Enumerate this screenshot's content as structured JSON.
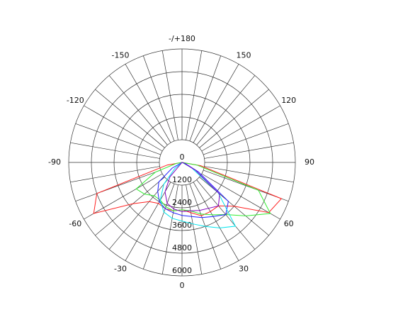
{
  "chart_data": {
    "type": "polar",
    "angles": [
      -90,
      -80,
      -70,
      -60,
      -50,
      -40,
      -30,
      -20,
      -10,
      0,
      10,
      20,
      30,
      40,
      50,
      60,
      70,
      80,
      90
    ],
    "rlim": [
      0,
      6000
    ],
    "rticks": [
      0,
      1200,
      2400,
      3600,
      4800,
      6000
    ],
    "angle_ticks": [
      0,
      30,
      60,
      90,
      120,
      150,
      {
        "value": 180,
        "label": "-/+180"
      },
      -150,
      -120,
      -90,
      -60,
      -30
    ],
    "series": [
      {
        "color": "#ff2020",
        "values": [
          0,
          800,
          4800,
          5400,
          3400,
          2700,
          2500,
          2600,
          2600,
          2500,
          2700,
          3000,
          3000,
          3000,
          3600,
          5300,
          5600,
          1000,
          0
        ]
      },
      {
        "color": "#33ee33",
        "values": [
          0,
          300,
          1500,
          2800,
          2600,
          2300,
          2300,
          2500,
          2600,
          2500,
          2600,
          2900,
          3200,
          3600,
          4400,
          5400,
          4300,
          800,
          0
        ]
      },
      {
        "color": "#2020ff",
        "values": [
          0,
          0,
          0,
          600,
          1600,
          2000,
          2400,
          2600,
          2700,
          2800,
          2900,
          3100,
          3300,
          3600,
          3200,
          1000,
          200,
          0,
          0
        ]
      },
      {
        "color": "#00e5ee",
        "values": [
          0,
          0,
          0,
          0,
          500,
          1500,
          2300,
          2800,
          3000,
          3100,
          3300,
          3600,
          4000,
          4400,
          2500,
          600,
          0,
          0,
          0
        ]
      },
      {
        "color": "#8000c0",
        "values": [
          0,
          0,
          0,
          0,
          0,
          1000,
          1800,
          2300,
          2500,
          2600,
          2600,
          2700,
          2800,
          3000,
          2600,
          800,
          100,
          0,
          0
        ]
      }
    ]
  }
}
